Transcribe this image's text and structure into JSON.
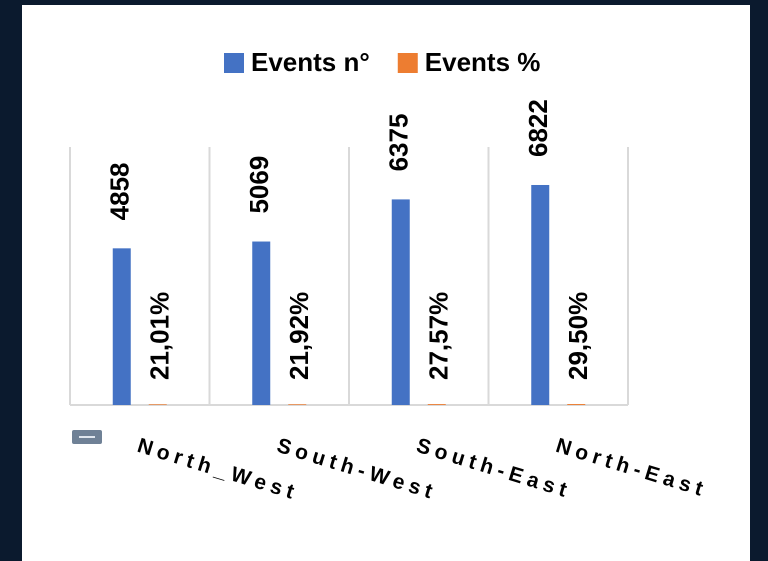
{
  "chart_data": {
    "type": "bar",
    "categories": [
      "North_West",
      "South-West",
      "South-East",
      "North-East"
    ],
    "series": [
      {
        "name": "Events n°",
        "color": "#4472c4",
        "values": [
          4858,
          5069,
          6375,
          6822
        ]
      },
      {
        "name": "Events %",
        "color": "#ed7d31",
        "values": [
          21.01,
          21.92,
          27.57,
          29.5
        ],
        "value_labels": [
          "21,01%",
          "21,92%",
          "27,57%",
          "29,50%"
        ]
      }
    ],
    "ylim": [
      0,
      8000
    ],
    "legend": "top"
  }
}
